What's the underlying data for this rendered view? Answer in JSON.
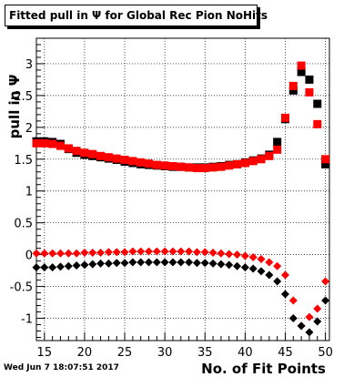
{
  "chart_data": {
    "type": "scatter",
    "title": "Fitted pull in  Ψ  for Global Rec Pion NoHits",
    "xlabel": "No. of Fit Points",
    "ylabel": "pull in  Ψ",
    "xlim": [
      14,
      50.5
    ],
    "ylim": [
      -1.35,
      3.4
    ],
    "xticks": [
      15,
      20,
      25,
      30,
      35,
      40,
      45,
      50
    ],
    "yticks": [
      -1,
      -0.5,
      0,
      0.5,
      1,
      1.5,
      2,
      2.5,
      3
    ],
    "grid": true,
    "legend": "none",
    "series": [
      {
        "marker": "square",
        "color": "#000000",
        "x": [
          14,
          15,
          16,
          17,
          18,
          19,
          20,
          21,
          22,
          23,
          24,
          25,
          26,
          27,
          28,
          29,
          30,
          31,
          32,
          33,
          34,
          35,
          36,
          37,
          38,
          39,
          40,
          41,
          42,
          43,
          44,
          45,
          46,
          47,
          48,
          49,
          50
        ],
        "y": [
          1.78,
          1.78,
          1.77,
          1.74,
          1.66,
          1.6,
          1.57,
          1.55,
          1.53,
          1.51,
          1.49,
          1.46,
          1.44,
          1.42,
          1.41,
          1.4,
          1.39,
          1.38,
          1.38,
          1.37,
          1.37,
          1.37,
          1.38,
          1.39,
          1.41,
          1.42,
          1.45,
          1.48,
          1.51,
          1.57,
          1.77,
          2.13,
          2.58,
          2.87,
          2.75,
          2.37,
          1.42
        ]
      },
      {
        "marker": "square",
        "color": "#ff0000",
        "x": [
          14,
          15,
          16,
          17,
          18,
          19,
          20,
          21,
          22,
          23,
          24,
          25,
          26,
          27,
          28,
          29,
          30,
          31,
          32,
          33,
          34,
          35,
          36,
          37,
          38,
          39,
          40,
          41,
          42,
          43,
          44,
          45,
          46,
          47,
          48,
          49,
          50
        ],
        "y": [
          1.75,
          1.75,
          1.74,
          1.71,
          1.67,
          1.63,
          1.6,
          1.58,
          1.55,
          1.53,
          1.51,
          1.49,
          1.47,
          1.45,
          1.43,
          1.41,
          1.4,
          1.39,
          1.38,
          1.37,
          1.36,
          1.36,
          1.37,
          1.38,
          1.4,
          1.42,
          1.44,
          1.47,
          1.5,
          1.55,
          1.65,
          2.15,
          2.65,
          2.97,
          2.55,
          2.05,
          1.5
        ]
      },
      {
        "marker": "diamond",
        "color": "#ff0000",
        "x": [
          14,
          15,
          16,
          17,
          18,
          19,
          20,
          21,
          22,
          23,
          24,
          25,
          26,
          27,
          28,
          29,
          30,
          31,
          32,
          33,
          34,
          35,
          36,
          37,
          38,
          39,
          40,
          41,
          42,
          43,
          44,
          45,
          46,
          47,
          48,
          49,
          50
        ],
        "y": [
          0.02,
          0.02,
          0.02,
          0.02,
          0.02,
          0.02,
          0.03,
          0.03,
          0.03,
          0.04,
          0.04,
          0.04,
          0.05,
          0.05,
          0.05,
          0.05,
          0.05,
          0.05,
          0.05,
          0.05,
          0.04,
          0.04,
          0.03,
          0.02,
          0.01,
          0.0,
          -0.02,
          -0.04,
          -0.07,
          -0.12,
          -0.18,
          -0.32,
          -0.72,
          -1.12,
          -0.98,
          -0.85,
          -0.42
        ]
      },
      {
        "marker": "diamond",
        "color": "#000000",
        "x": [
          14,
          15,
          16,
          17,
          18,
          19,
          20,
          21,
          22,
          23,
          24,
          25,
          26,
          27,
          28,
          29,
          30,
          31,
          32,
          33,
          34,
          35,
          36,
          37,
          38,
          39,
          40,
          41,
          42,
          43,
          44,
          45,
          46,
          47,
          48,
          49,
          50
        ],
        "y": [
          -0.2,
          -0.2,
          -0.2,
          -0.19,
          -0.18,
          -0.17,
          -0.16,
          -0.15,
          -0.14,
          -0.14,
          -0.13,
          -0.13,
          -0.12,
          -0.12,
          -0.12,
          -0.12,
          -0.12,
          -0.12,
          -0.12,
          -0.12,
          -0.13,
          -0.13,
          -0.14,
          -0.15,
          -0.16,
          -0.18,
          -0.2,
          -0.22,
          -0.26,
          -0.32,
          -0.42,
          -0.62,
          -1.0,
          -1.12,
          -1.22,
          -1.05,
          -0.72
        ]
      }
    ]
  },
  "footer": {
    "timestamp": "Wed Jun  7 18:07:51 2017"
  }
}
